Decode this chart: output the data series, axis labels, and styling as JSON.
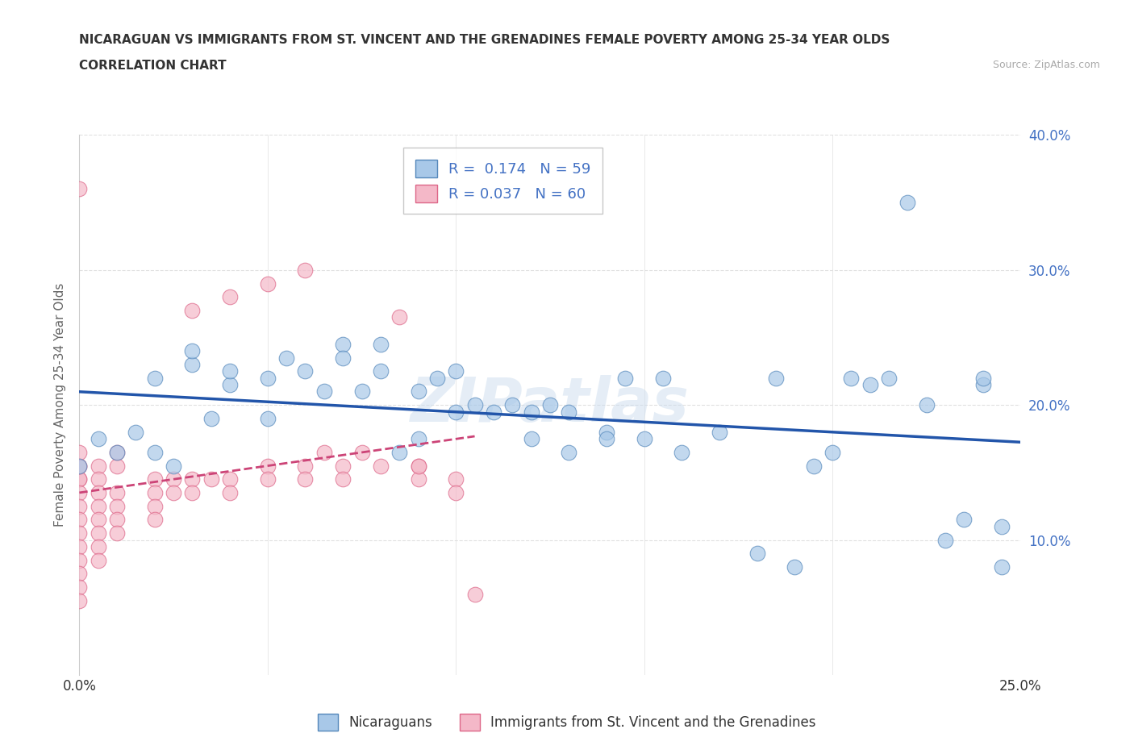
{
  "title_line1": "NICARAGUAN VS IMMIGRANTS FROM ST. VINCENT AND THE GRENADINES FEMALE POVERTY AMONG 25-34 YEAR OLDS",
  "title_line2": "CORRELATION CHART",
  "source_text": "Source: ZipAtlas.com",
  "ylabel": "Female Poverty Among 25-34 Year Olds",
  "watermark": "ZIPatlas",
  "blue_R": 0.174,
  "blue_N": 59,
  "pink_R": 0.037,
  "pink_N": 60,
  "xlim": [
    0.0,
    0.25
  ],
  "ylim": [
    0.0,
    0.4
  ],
  "blue_color": "#a8c8e8",
  "pink_color": "#f4b8c8",
  "blue_edge_color": "#5588bb",
  "pink_edge_color": "#dd6688",
  "blue_line_color": "#2255aa",
  "pink_line_color": "#cc4477",
  "legend_label_blue": "Nicaraguans",
  "legend_label_pink": "Immigrants from St. Vincent and the Grenadines",
  "blue_scatter_x": [
    0.0,
    0.005,
    0.01,
    0.015,
    0.02,
    0.02,
    0.025,
    0.03,
    0.03,
    0.035,
    0.04,
    0.04,
    0.05,
    0.05,
    0.055,
    0.06,
    0.065,
    0.07,
    0.07,
    0.075,
    0.08,
    0.08,
    0.085,
    0.09,
    0.09,
    0.095,
    0.1,
    0.1,
    0.105,
    0.11,
    0.115,
    0.12,
    0.12,
    0.125,
    0.13,
    0.13,
    0.14,
    0.14,
    0.145,
    0.15,
    0.155,
    0.16,
    0.17,
    0.18,
    0.185,
    0.19,
    0.195,
    0.2,
    0.205,
    0.21,
    0.215,
    0.22,
    0.225,
    0.23,
    0.235,
    0.24,
    0.245,
    0.245,
    0.24
  ],
  "blue_scatter_y": [
    0.155,
    0.175,
    0.165,
    0.18,
    0.165,
    0.22,
    0.155,
    0.23,
    0.24,
    0.19,
    0.215,
    0.225,
    0.22,
    0.19,
    0.235,
    0.225,
    0.21,
    0.245,
    0.235,
    0.21,
    0.225,
    0.245,
    0.165,
    0.21,
    0.175,
    0.22,
    0.225,
    0.195,
    0.2,
    0.195,
    0.2,
    0.195,
    0.175,
    0.2,
    0.195,
    0.165,
    0.18,
    0.175,
    0.22,
    0.175,
    0.22,
    0.165,
    0.18,
    0.09,
    0.22,
    0.08,
    0.155,
    0.165,
    0.22,
    0.215,
    0.22,
    0.35,
    0.2,
    0.1,
    0.115,
    0.215,
    0.11,
    0.08,
    0.22
  ],
  "pink_scatter_x": [
    0.0,
    0.0,
    0.0,
    0.0,
    0.0,
    0.0,
    0.0,
    0.0,
    0.0,
    0.0,
    0.0,
    0.0,
    0.0,
    0.0,
    0.0,
    0.005,
    0.005,
    0.005,
    0.005,
    0.005,
    0.005,
    0.005,
    0.005,
    0.01,
    0.01,
    0.01,
    0.01,
    0.01,
    0.01,
    0.02,
    0.02,
    0.02,
    0.02,
    0.025,
    0.025,
    0.03,
    0.03,
    0.03,
    0.035,
    0.04,
    0.04,
    0.04,
    0.05,
    0.05,
    0.05,
    0.06,
    0.06,
    0.06,
    0.065,
    0.07,
    0.07,
    0.075,
    0.08,
    0.085,
    0.09,
    0.09,
    0.09,
    0.1,
    0.1,
    0.105
  ],
  "pink_scatter_y": [
    0.145,
    0.145,
    0.135,
    0.125,
    0.115,
    0.105,
    0.095,
    0.085,
    0.075,
    0.065,
    0.055,
    0.36,
    0.155,
    0.155,
    0.165,
    0.155,
    0.145,
    0.135,
    0.125,
    0.115,
    0.105,
    0.095,
    0.085,
    0.155,
    0.165,
    0.135,
    0.125,
    0.115,
    0.105,
    0.145,
    0.135,
    0.125,
    0.115,
    0.145,
    0.135,
    0.145,
    0.135,
    0.27,
    0.145,
    0.145,
    0.135,
    0.28,
    0.155,
    0.145,
    0.29,
    0.155,
    0.145,
    0.3,
    0.165,
    0.155,
    0.145,
    0.165,
    0.155,
    0.265,
    0.155,
    0.145,
    0.155,
    0.145,
    0.135,
    0.06
  ],
  "background_color": "#ffffff",
  "grid_color": "#e0e0e0"
}
